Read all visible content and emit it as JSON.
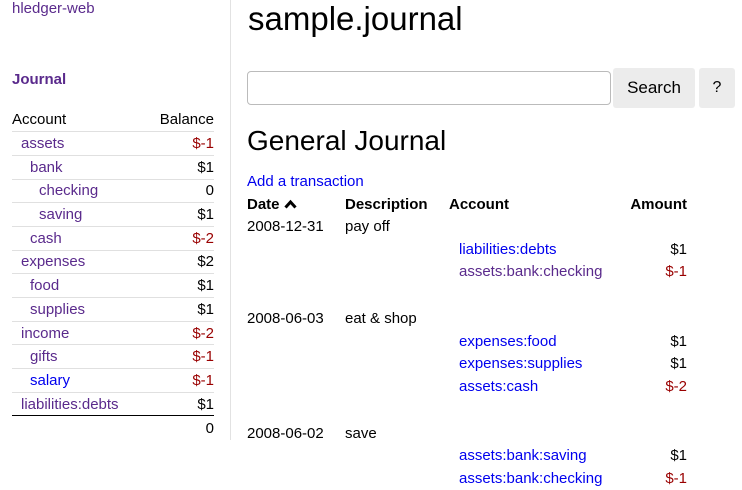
{
  "sidebar": {
    "brand": "hledger-web",
    "journal_link": "Journal",
    "headers": {
      "account": "Account",
      "balance": "Balance"
    },
    "accounts": [
      {
        "name": "assets",
        "balance": "$-1",
        "depth": 0,
        "neg": true,
        "visited": true
      },
      {
        "name": "bank",
        "balance": "$1",
        "depth": 1,
        "neg": false,
        "visited": true
      },
      {
        "name": "checking",
        "balance": "0",
        "depth": 2,
        "neg": false,
        "visited": true
      },
      {
        "name": "saving",
        "balance": "$1",
        "depth": 2,
        "neg": false,
        "visited": true
      },
      {
        "name": "cash",
        "balance": "$-2",
        "depth": 1,
        "neg": true,
        "visited": true
      },
      {
        "name": "expenses",
        "balance": "$2",
        "depth": 0,
        "neg": false,
        "visited": true
      },
      {
        "name": "food",
        "balance": "$1",
        "depth": 1,
        "neg": false,
        "visited": true
      },
      {
        "name": "supplies",
        "balance": "$1",
        "depth": 1,
        "neg": false,
        "visited": true
      },
      {
        "name": "income",
        "balance": "$-2",
        "depth": 0,
        "neg": true,
        "visited": true
      },
      {
        "name": "gifts",
        "balance": "$-1",
        "depth": 1,
        "neg": true,
        "visited": true
      },
      {
        "name": "salary",
        "balance": "$-1",
        "depth": 1,
        "neg": true,
        "visited": false
      },
      {
        "name": "liabilities:debts",
        "balance": "$1",
        "depth": 0,
        "neg": false,
        "visited": true
      }
    ],
    "total": "0"
  },
  "header": {
    "title": "sample.journal"
  },
  "search": {
    "value": "",
    "button": "Search",
    "help": "?"
  },
  "journal": {
    "title": "General Journal",
    "add_link": "Add a transaction",
    "columns": {
      "date": "Date",
      "description": "Description",
      "account": "Account",
      "amount": "Amount"
    },
    "sort_icon": "caret-up-icon",
    "transactions": [
      {
        "date": "2008-12-31",
        "description": "pay off",
        "postings": [
          {
            "account": "liabilities:debts",
            "amount": "$1",
            "neg": false,
            "visited": false
          },
          {
            "account": "assets:bank:checking",
            "amount": "$-1",
            "neg": true,
            "visited": true
          }
        ]
      },
      {
        "date": "2008-06-03",
        "description": "eat & shop",
        "postings": [
          {
            "account": "expenses:food",
            "amount": "$1",
            "neg": false,
            "visited": false
          },
          {
            "account": "expenses:supplies",
            "amount": "$1",
            "neg": false,
            "visited": false
          },
          {
            "account": "assets:cash",
            "amount": "$-2",
            "neg": true,
            "visited": false
          }
        ]
      },
      {
        "date": "2008-06-02",
        "description": "save",
        "postings": [
          {
            "account": "assets:bank:saving",
            "amount": "$1",
            "neg": false,
            "visited": false
          },
          {
            "account": "assets:bank:checking",
            "amount": "$-1",
            "neg": true,
            "visited": false
          }
        ]
      }
    ]
  },
  "colors": {
    "visited": "#5a2a8c",
    "link": "#0000ee",
    "negative": "#990000"
  }
}
